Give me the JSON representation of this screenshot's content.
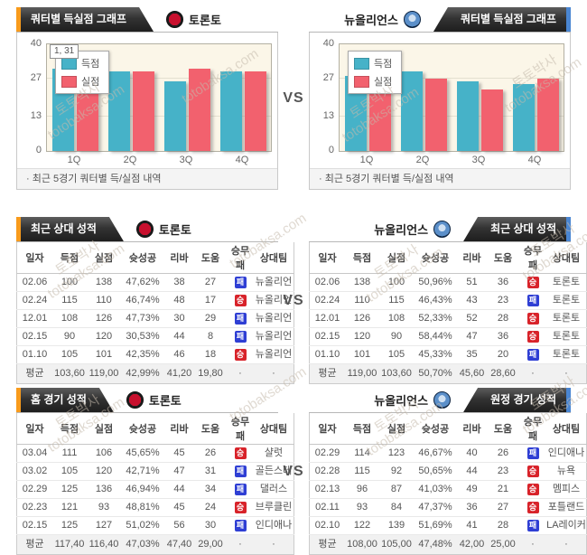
{
  "vs_label": "VS",
  "teams": {
    "home": {
      "name": "토론토"
    },
    "away": {
      "name": "뉴올리언스"
    }
  },
  "watermark": {
    "line1": "토토박사",
    "line2": "totobaksa.com"
  },
  "colors": {
    "accent_orange": "#f89b1c",
    "accent_blue": "#4a86d2",
    "score_bar": "#46b2c8",
    "concede_bar": "#f2616e",
    "win_badge": "#d8232a",
    "loss_badge": "#2f3fd4"
  },
  "chart_section": {
    "tab_label": "쿼터별 득실점 그래프",
    "note": "· 최근 5경기 쿼터별 득/실점 내역"
  },
  "chart_data": [
    {
      "type": "bar",
      "title": "쿼터별 득실점 그래프 - 토론토",
      "categories": [
        "1Q",
        "2Q",
        "3Q",
        "4Q"
      ],
      "series": [
        {
          "name": "득점",
          "color": "#46b2c8",
          "values": [
            31,
            30,
            26,
            30
          ]
        },
        {
          "name": "실점",
          "color": "#f2616e",
          "values": [
            28,
            30,
            31,
            30
          ]
        }
      ],
      "ylim": [
        0,
        40
      ],
      "yticks": [
        0,
        13,
        27,
        40
      ],
      "grid": true,
      "legend_position": "top-left",
      "tooltip": "1, 31"
    },
    {
      "type": "bar",
      "title": "쿼터별 득실점 그래프 - 뉴올리언스",
      "categories": [
        "1Q",
        "2Q",
        "3Q",
        "4Q"
      ],
      "series": [
        {
          "name": "득점",
          "color": "#46b2c8",
          "values": [
            28,
            30,
            26,
            25
          ]
        },
        {
          "name": "실점",
          "color": "#f2616e",
          "values": [
            28,
            27,
            23,
            27
          ]
        }
      ],
      "ylim": [
        0,
        40
      ],
      "yticks": [
        0,
        13,
        27,
        40
      ],
      "grid": true,
      "legend_position": "top-left"
    }
  ],
  "badges": {
    "win": "승",
    "loss": "패"
  },
  "tables": {
    "headers": [
      "일자",
      "득점",
      "실점",
      "슛성공",
      "리바",
      "도움",
      "승무패",
      "상대팀"
    ],
    "avg_label": "평균",
    "dot": "·",
    "recent_home": {
      "tab": "최근 상대 성적",
      "rows": [
        {
          "date": "02.06",
          "pts": "100",
          "pa": "138",
          "fg": "47,62%",
          "reb": "38",
          "ast": "27",
          "result": "loss",
          "opp": "뉴올리언"
        },
        {
          "date": "02.24",
          "pts": "115",
          "pa": "110",
          "fg": "46,74%",
          "reb": "48",
          "ast": "17",
          "result": "win",
          "opp": "뉴올리언"
        },
        {
          "date": "12.01",
          "pts": "108",
          "pa": "126",
          "fg": "47,73%",
          "reb": "30",
          "ast": "29",
          "result": "loss",
          "opp": "뉴올리언"
        },
        {
          "date": "02.15",
          "pts": "90",
          "pa": "120",
          "fg": "30,53%",
          "reb": "44",
          "ast": "8",
          "result": "loss",
          "opp": "뉴올리언"
        },
        {
          "date": "01.10",
          "pts": "105",
          "pa": "101",
          "fg": "42,35%",
          "reb": "46",
          "ast": "18",
          "result": "win",
          "opp": "뉴올리언"
        }
      ],
      "avg": {
        "pts": "103,60",
        "pa": "119,00",
        "fg": "42,99%",
        "reb": "41,20",
        "ast": "19,80"
      }
    },
    "recent_away": {
      "tab": "최근 상대 성적",
      "rows": [
        {
          "date": "02.06",
          "pts": "138",
          "pa": "100",
          "fg": "50,96%",
          "reb": "51",
          "ast": "36",
          "result": "win",
          "opp": "토론토"
        },
        {
          "date": "02.24",
          "pts": "110",
          "pa": "115",
          "fg": "46,43%",
          "reb": "43",
          "ast": "23",
          "result": "loss",
          "opp": "토론토"
        },
        {
          "date": "12.01",
          "pts": "126",
          "pa": "108",
          "fg": "52,33%",
          "reb": "52",
          "ast": "28",
          "result": "win",
          "opp": "토론토"
        },
        {
          "date": "02.15",
          "pts": "120",
          "pa": "90",
          "fg": "58,44%",
          "reb": "47",
          "ast": "36",
          "result": "win",
          "opp": "토론토"
        },
        {
          "date": "01.10",
          "pts": "101",
          "pa": "105",
          "fg": "45,33%",
          "reb": "35",
          "ast": "20",
          "result": "loss",
          "opp": "토론토"
        }
      ],
      "avg": {
        "pts": "119,00",
        "pa": "103,60",
        "fg": "50,70%",
        "reb": "45,60",
        "ast": "28,60"
      }
    },
    "home_games": {
      "tab": "홈 경기 성적",
      "rows": [
        {
          "date": "03.04",
          "pts": "111",
          "pa": "106",
          "fg": "45,65%",
          "reb": "45",
          "ast": "26",
          "result": "win",
          "opp": "샬럿"
        },
        {
          "date": "03.02",
          "pts": "105",
          "pa": "120",
          "fg": "42,71%",
          "reb": "47",
          "ast": "31",
          "result": "loss",
          "opp": "골든스테"
        },
        {
          "date": "02.29",
          "pts": "125",
          "pa": "136",
          "fg": "46,94%",
          "reb": "44",
          "ast": "34",
          "result": "loss",
          "opp": "댈러스"
        },
        {
          "date": "02.23",
          "pts": "121",
          "pa": "93",
          "fg": "48,81%",
          "reb": "45",
          "ast": "24",
          "result": "win",
          "opp": "브루클린"
        },
        {
          "date": "02.15",
          "pts": "125",
          "pa": "127",
          "fg": "51,02%",
          "reb": "56",
          "ast": "30",
          "result": "loss",
          "opp": "인디애나"
        }
      ],
      "avg": {
        "pts": "117,40",
        "pa": "116,40",
        "fg": "47,03%",
        "reb": "47,40",
        "ast": "29,00"
      }
    },
    "away_games": {
      "tab": "원정 경기 성적",
      "rows": [
        {
          "date": "02.29",
          "pts": "114",
          "pa": "123",
          "fg": "46,67%",
          "reb": "40",
          "ast": "26",
          "result": "loss",
          "opp": "인디애나"
        },
        {
          "date": "02.28",
          "pts": "115",
          "pa": "92",
          "fg": "50,65%",
          "reb": "44",
          "ast": "23",
          "result": "win",
          "opp": "뉴욕"
        },
        {
          "date": "02.13",
          "pts": "96",
          "pa": "87",
          "fg": "41,03%",
          "reb": "49",
          "ast": "21",
          "result": "win",
          "opp": "멤피스"
        },
        {
          "date": "02.11",
          "pts": "93",
          "pa": "84",
          "fg": "47,37%",
          "reb": "36",
          "ast": "27",
          "result": "win",
          "opp": "포틀랜드"
        },
        {
          "date": "02.10",
          "pts": "122",
          "pa": "139",
          "fg": "51,69%",
          "reb": "41",
          "ast": "28",
          "result": "loss",
          "opp": "LA레이커"
        }
      ],
      "avg": {
        "pts": "108,00",
        "pa": "105,00",
        "fg": "47,48%",
        "reb": "42,00",
        "ast": "25,00"
      }
    }
  }
}
